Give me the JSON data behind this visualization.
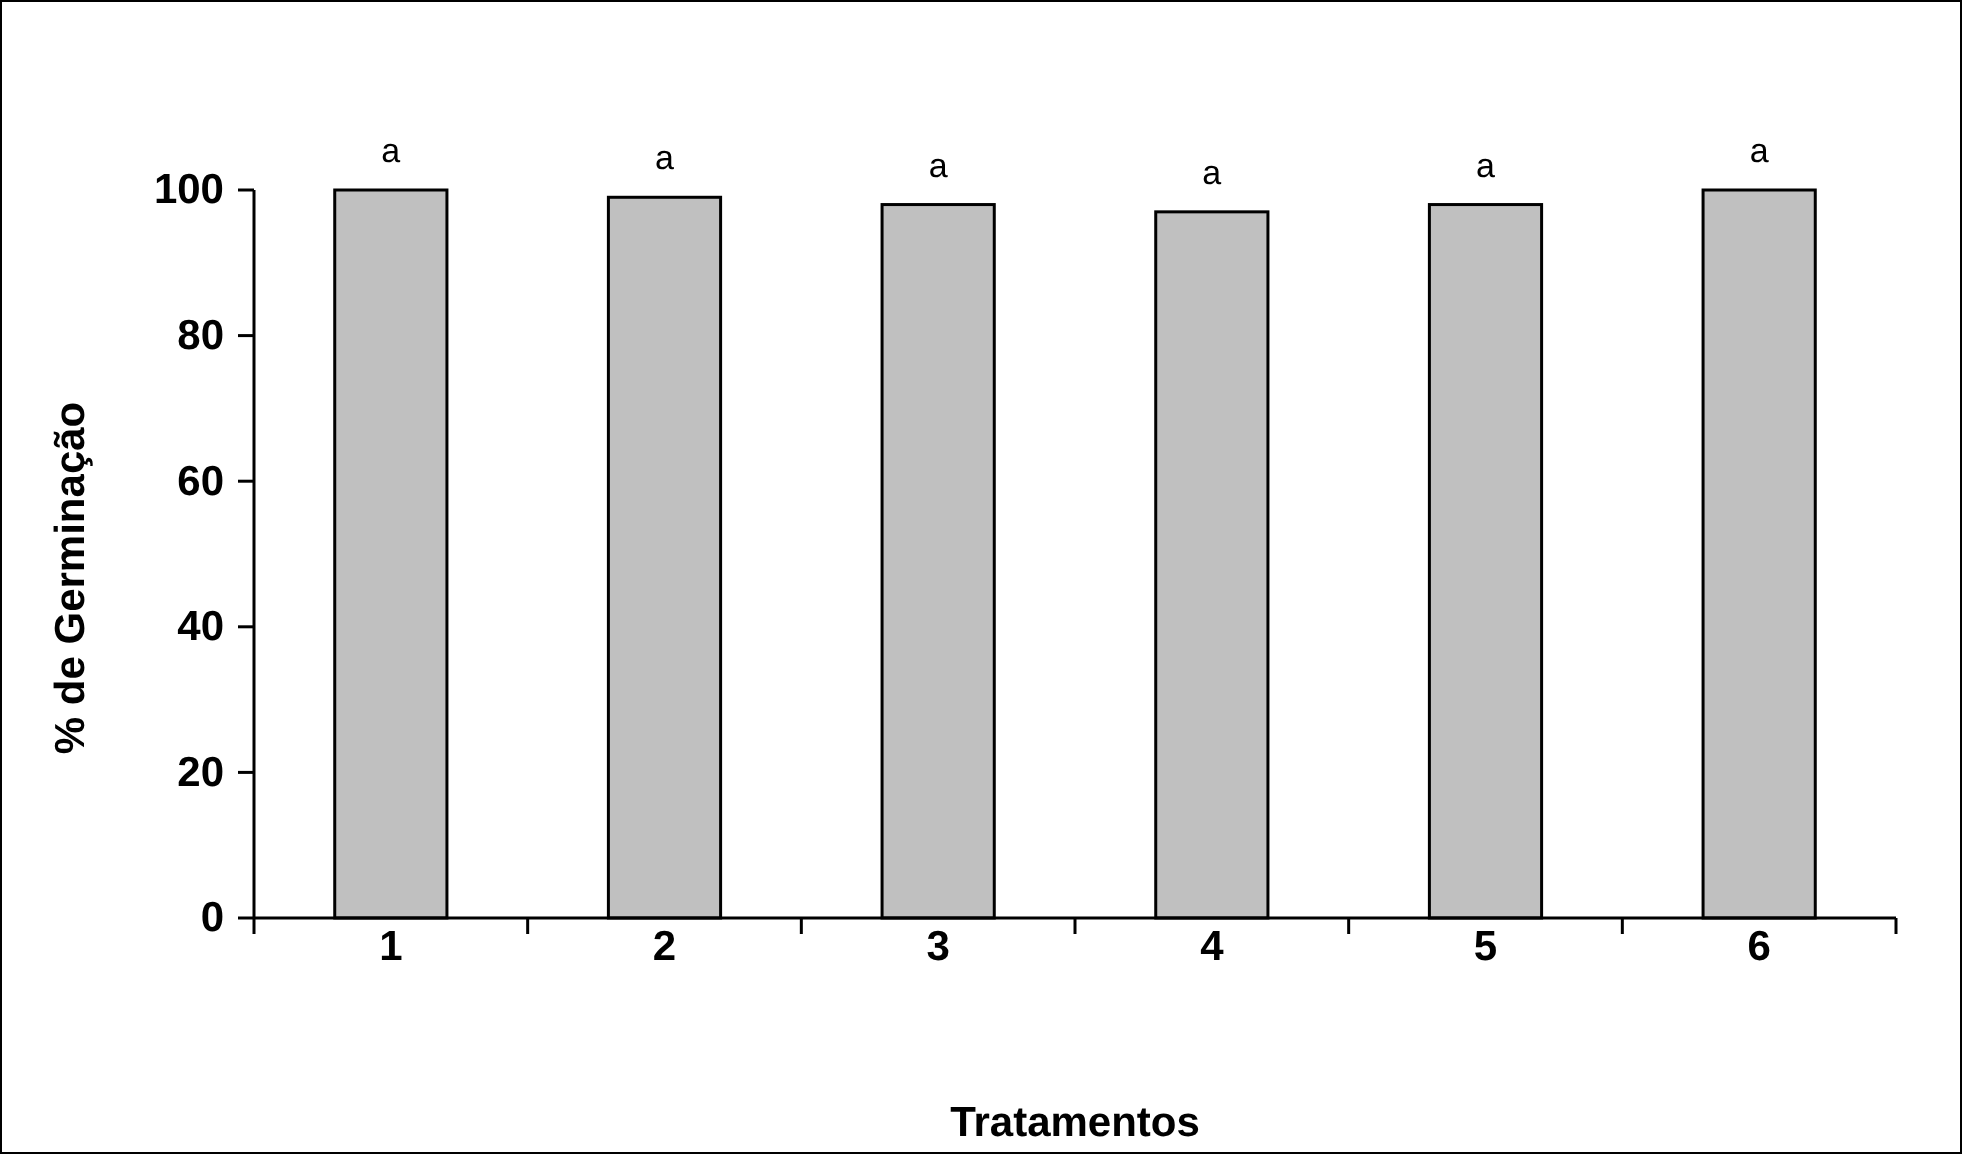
{
  "chart_data": {
    "type": "bar",
    "xlabel": "Tratamentos",
    "ylabel": "% de Germinação",
    "categories": [
      "1",
      "2",
      "3",
      "4",
      "5",
      "6"
    ],
    "values": [
      100,
      99,
      98,
      97,
      98,
      100
    ],
    "color": "#c0c0c0",
    "ylim": [
      0,
      100
    ],
    "yticks": [
      0,
      20,
      40,
      60,
      80,
      100
    ],
    "grid": false,
    "annotations": [
      {
        "text": "a",
        "x": "1",
        "y": 100
      },
      {
        "text": "a",
        "x": "2",
        "y": 99
      },
      {
        "text": "a",
        "x": "3",
        "y": 98
      },
      {
        "text": "a",
        "x": "4",
        "y": 97
      },
      {
        "text": "a",
        "x": "5",
        "y": 98
      },
      {
        "text": "a",
        "x": "6",
        "y": 100
      }
    ]
  }
}
